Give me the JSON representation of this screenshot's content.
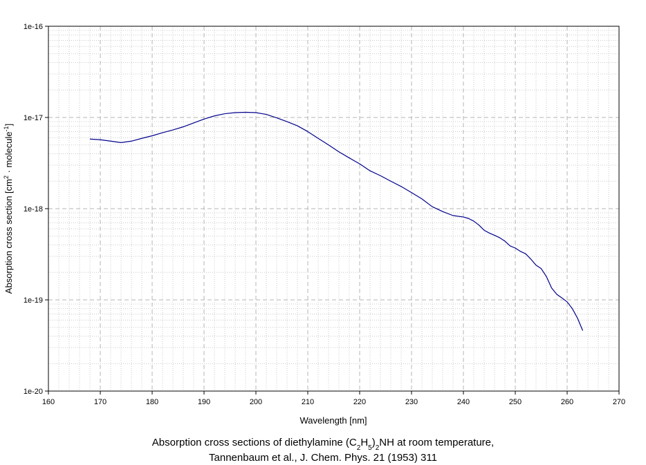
{
  "chart_data": {
    "type": "line",
    "title": "",
    "xlabel": "Wavelength [nm]",
    "ylabel_parts": [
      "Absorption cross section [cm",
      "2",
      " · molecule",
      "-1",
      "]"
    ],
    "caption_line1_parts": [
      "Absorption cross sections of diethylamine (C",
      "2",
      "H",
      "5",
      ")",
      "2",
      "NH at room temperature,"
    ],
    "caption_line2": "Tannenbaum et al., J. Chem. Phys. 21 (1953) 311",
    "xlim": [
      160,
      270
    ],
    "ylim": [
      1e-20,
      1e-16
    ],
    "yscale": "log",
    "x_ticks": [
      "160",
      "170",
      "180",
      "190",
      "200",
      "210",
      "220",
      "230",
      "240",
      "250",
      "260",
      "270"
    ],
    "y_ticks": [
      "1e-20",
      "1e-19",
      "1e-18",
      "1e-17",
      "1e-16"
    ],
    "grid": true,
    "line_color": "#00008b",
    "series": [
      {
        "x": [
          168,
          170,
          172,
          174,
          176,
          178,
          180,
          182,
          184,
          186,
          188,
          190,
          192,
          194,
          196,
          198,
          200,
          202,
          204,
          206,
          208,
          210,
          212,
          214,
          216,
          218,
          220,
          222,
          224,
          226,
          228,
          230,
          232,
          234,
          236,
          238,
          240,
          241,
          242,
          243,
          244,
          245,
          246,
          247,
          248,
          249,
          250,
          251,
          252,
          253,
          254,
          255,
          256,
          257,
          258,
          259,
          260,
          261,
          262,
          263
        ],
        "y": [
          5.8e-18,
          5.7e-18,
          5.5e-18,
          5.3e-18,
          5.5e-18,
          5.9e-18,
          6.3e-18,
          6.8e-18,
          7.3e-18,
          7.9e-18,
          8.7e-18,
          9.6e-18,
          1.04e-17,
          1.1e-17,
          1.13e-17,
          1.14e-17,
          1.13e-17,
          1.08e-17,
          9.9e-18,
          9e-18,
          8.1e-18,
          7e-18,
          5.9e-18,
          5e-18,
          4.2e-18,
          3.6e-18,
          3.1e-18,
          2.6e-18,
          2.3e-18,
          2e-18,
          1.75e-18,
          1.5e-18,
          1.28e-18,
          1.05e-18,
          9.3e-19,
          8.4e-19,
          8.1e-19,
          7.8e-19,
          7.3e-19,
          6.6e-19,
          5.8e-19,
          5.4e-19,
          5.1e-19,
          4.8e-19,
          4.4e-19,
          3.9e-19,
          3.7e-19,
          3.4e-19,
          3.2e-19,
          2.8e-19,
          2.4e-19,
          2.2e-19,
          1.8e-19,
          1.35e-19,
          1.15e-19,
          1.05e-19,
          9.5e-20,
          8e-20,
          6.3e-20,
          4.6e-20
        ]
      }
    ]
  }
}
